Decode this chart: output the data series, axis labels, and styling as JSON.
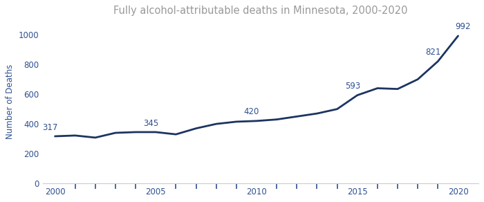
{
  "title": "Fully alcohol-attributable deaths in Minnesota, 2000-2020",
  "years": [
    2000,
    2001,
    2002,
    2003,
    2004,
    2005,
    2006,
    2007,
    2008,
    2009,
    2010,
    2011,
    2012,
    2013,
    2014,
    2015,
    2016,
    2017,
    2018,
    2019,
    2020
  ],
  "values": [
    317,
    322,
    308,
    340,
    345,
    345,
    330,
    370,
    400,
    415,
    420,
    430,
    450,
    470,
    500,
    593,
    640,
    635,
    700,
    821,
    992
  ],
  "labeled_points": {
    "2000": [
      317,
      -0.3,
      30
    ],
    "2005": [
      345,
      -0.3,
      30
    ],
    "2010": [
      420,
      -0.3,
      30
    ],
    "2015": [
      593,
      -0.3,
      30
    ],
    "2019": [
      821,
      -0.3,
      30
    ],
    "2020": [
      992,
      0.3,
      30
    ]
  },
  "line_color": "#1c3461",
  "line_width": 2.0,
  "label_color": "#2e5090",
  "title_color": "#999999",
  "ylabel": "Number of Deaths",
  "ylim": [
    0,
    1100
  ],
  "yticks": [
    0,
    200,
    400,
    600,
    800,
    1000
  ],
  "major_xticks": [
    2000,
    2005,
    2010,
    2015,
    2020
  ],
  "all_years": [
    2000,
    2001,
    2002,
    2003,
    2004,
    2005,
    2006,
    2007,
    2008,
    2009,
    2010,
    2011,
    2012,
    2013,
    2014,
    2015,
    2016,
    2017,
    2018,
    2019,
    2020
  ],
  "annotation_fontsize": 8.5,
  "axis_fontsize": 8.5,
  "title_fontsize": 10.5,
  "ylabel_fontsize": 8.5,
  "xlim_left": 1999.4,
  "xlim_right": 2021.0
}
